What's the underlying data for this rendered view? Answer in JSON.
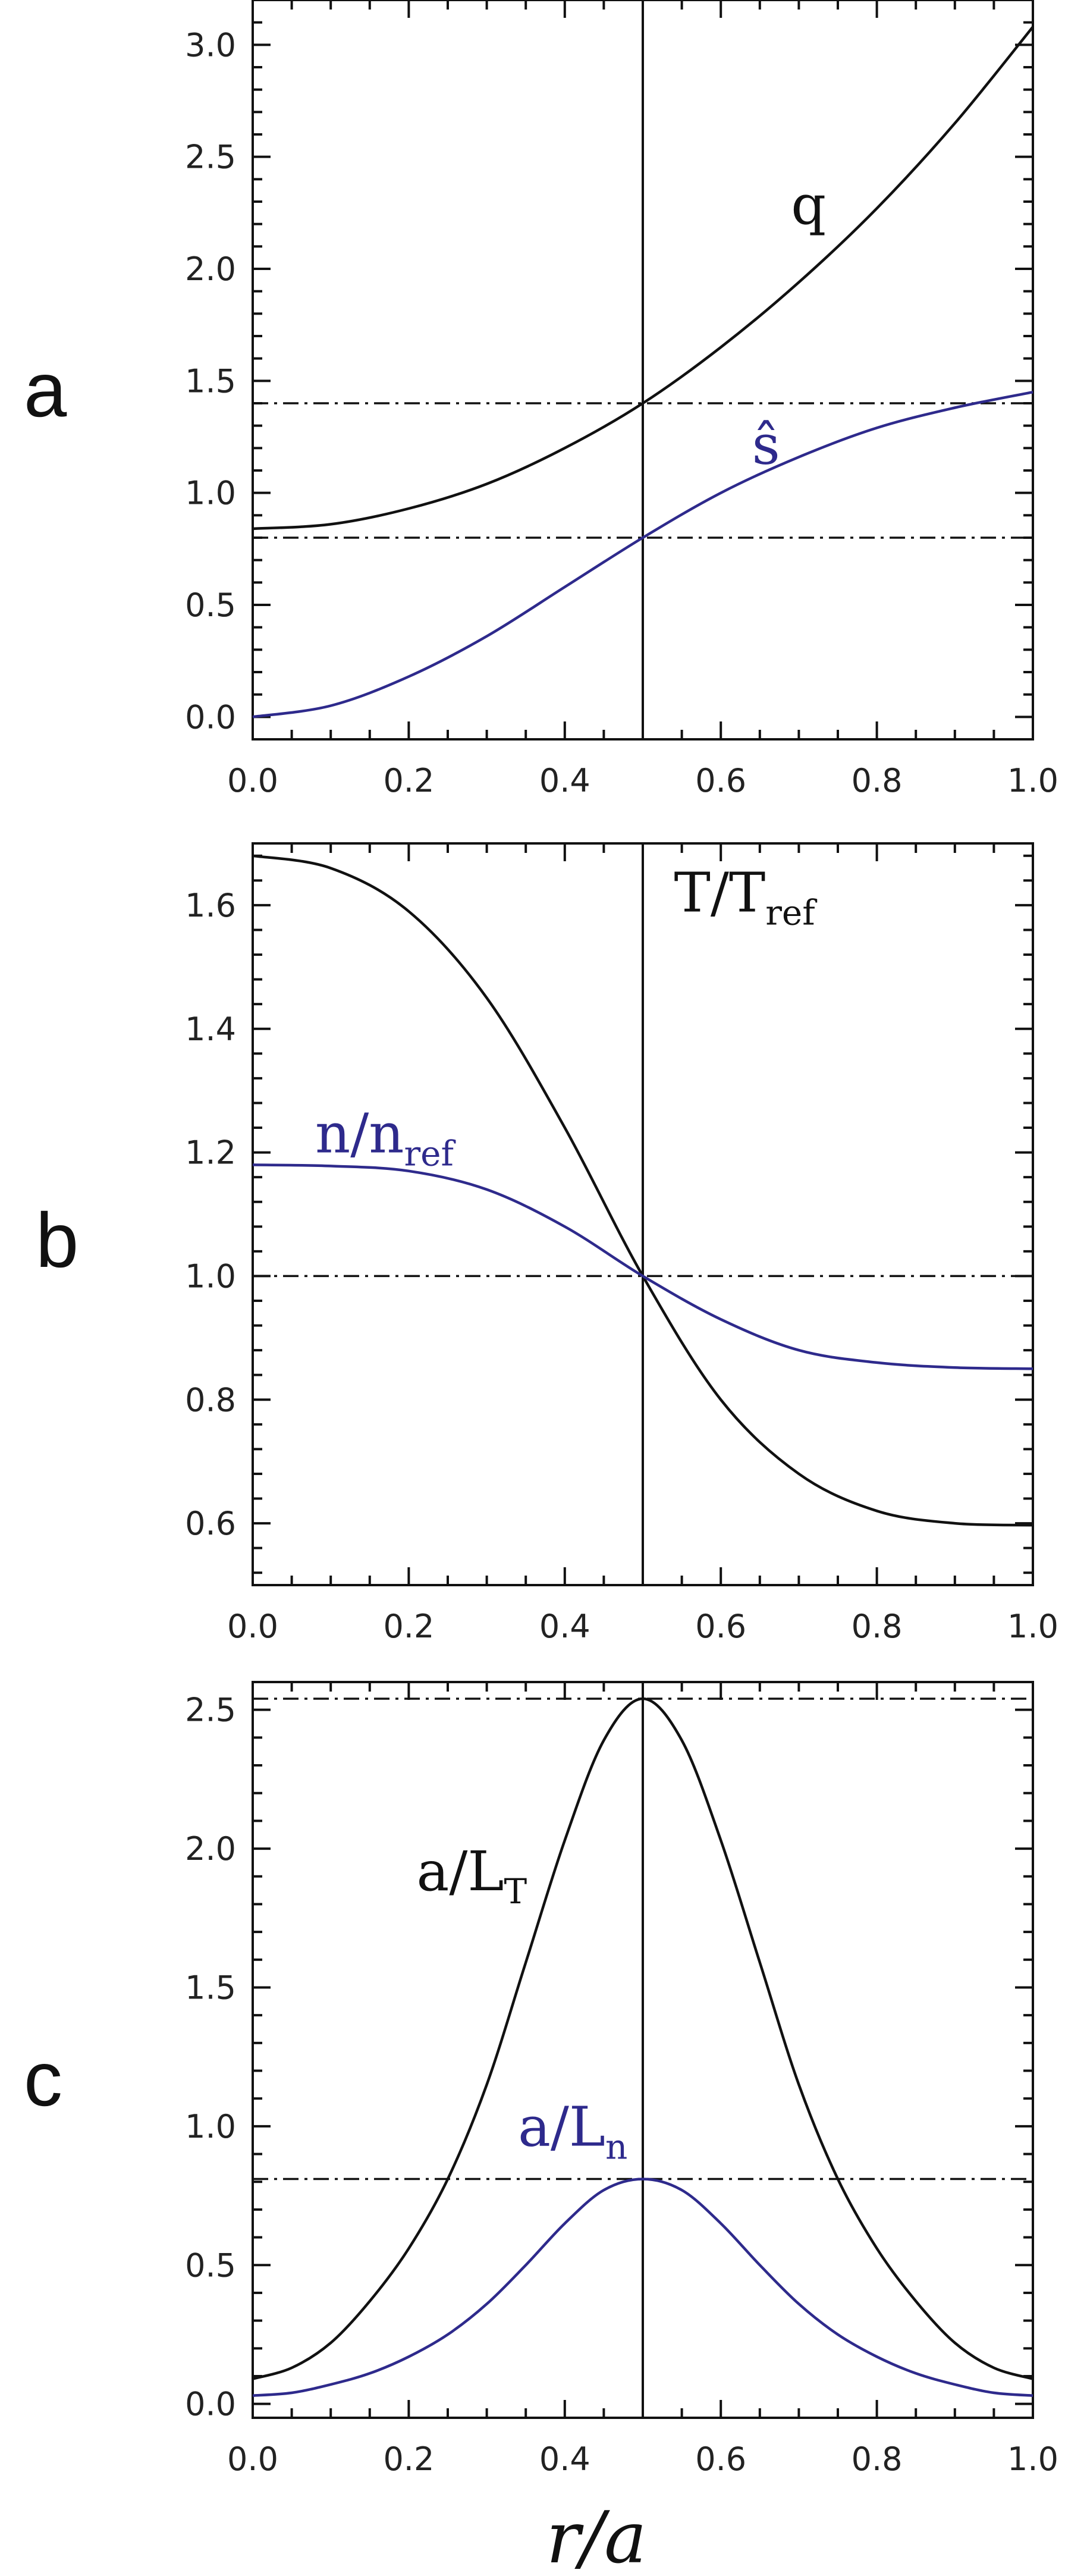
{
  "colors": {
    "black": "#111111",
    "blue": "#2e2a8c"
  },
  "x_axis": {
    "title": "r/a",
    "ticks": [
      "0.0",
      "0.2",
      "0.4",
      "0.6",
      "0.8",
      "1.0"
    ]
  },
  "chart_data": [
    {
      "type": "line",
      "panel_label": "a",
      "xlim": [
        0,
        1
      ],
      "ylim": [
        -0.1,
        3.2
      ],
      "yticks": [
        0.0,
        0.5,
        1.0,
        1.5,
        2.0,
        2.5,
        3.0
      ],
      "ytick_labels": [
        "0.0",
        "0.5",
        "1.0",
        "1.5",
        "2.0",
        "2.5",
        "3.0"
      ],
      "vline_x": 0.5,
      "hlines": [
        1.4,
        0.8
      ],
      "series": [
        {
          "name": "q",
          "color": "black",
          "x": [
            0.0,
            0.1,
            0.2,
            0.3,
            0.4,
            0.5,
            0.6,
            0.7,
            0.8,
            0.9,
            1.0
          ],
          "y": [
            0.84,
            0.86,
            0.93,
            1.04,
            1.2,
            1.4,
            1.65,
            1.94,
            2.27,
            2.65,
            3.08
          ]
        },
        {
          "name": "ŝ",
          "color": "blue",
          "x": [
            0.0,
            0.1,
            0.2,
            0.3,
            0.4,
            0.5,
            0.6,
            0.7,
            0.8,
            0.9,
            1.0
          ],
          "y": [
            0.0,
            0.05,
            0.18,
            0.36,
            0.58,
            0.8,
            1.0,
            1.16,
            1.29,
            1.38,
            1.45
          ]
        }
      ],
      "labels": [
        {
          "series": 0,
          "text": "q",
          "sub": "",
          "lx": 0.69,
          "ly": 2.2
        },
        {
          "series": 1,
          "text": "ŝ",
          "sub": "",
          "lx": 0.64,
          "ly": 1.13
        }
      ]
    },
    {
      "type": "line",
      "panel_label": "b",
      "xlim": [
        0,
        1
      ],
      "ylim": [
        0.5,
        1.7
      ],
      "yticks": [
        0.6,
        0.8,
        1.0,
        1.2,
        1.4,
        1.6
      ],
      "ytick_labels": [
        "0.6",
        "0.8",
        "1.0",
        "1.2",
        "1.4",
        "1.6"
      ],
      "vline_x": 0.5,
      "hlines": [
        1.0
      ],
      "series": [
        {
          "name": "T/Tref",
          "color": "black",
          "x": [
            0.0,
            0.1,
            0.2,
            0.3,
            0.4,
            0.5,
            0.6,
            0.7,
            0.8,
            0.9,
            1.0
          ],
          "y": [
            1.68,
            1.66,
            1.59,
            1.45,
            1.24,
            1.0,
            0.8,
            0.68,
            0.62,
            0.6,
            0.597
          ]
        },
        {
          "name": "n/nref",
          "color": "blue",
          "x": [
            0.0,
            0.1,
            0.2,
            0.3,
            0.4,
            0.5,
            0.6,
            0.7,
            0.8,
            0.9,
            1.0
          ],
          "y": [
            1.18,
            1.178,
            1.17,
            1.14,
            1.08,
            1.0,
            0.93,
            0.88,
            0.86,
            0.852,
            0.85
          ]
        }
      ],
      "labels": [
        {
          "series": 0,
          "text": "T/T",
          "sub": "ref",
          "lx": 0.54,
          "ly": 1.59
        },
        {
          "series": 1,
          "text": "n/n",
          "sub": "ref",
          "lx": 0.08,
          "ly": 1.2
        }
      ]
    },
    {
      "type": "line",
      "panel_label": "c",
      "xlim": [
        0,
        1
      ],
      "ylim": [
        -0.05,
        2.6
      ],
      "yticks": [
        0.0,
        0.5,
        1.0,
        1.5,
        2.0,
        2.5
      ],
      "ytick_labels": [
        "0.0",
        "0.5",
        "1.0",
        "1.5",
        "2.0",
        "2.5"
      ],
      "vline_x": 0.5,
      "hlines": [
        2.54,
        0.81
      ],
      "series": [
        {
          "name": "a/LT",
          "color": "black",
          "x": [
            0.0,
            0.05,
            0.1,
            0.15,
            0.2,
            0.25,
            0.3,
            0.35,
            0.4,
            0.45,
            0.5,
            0.55,
            0.6,
            0.65,
            0.7,
            0.75,
            0.8,
            0.85,
            0.9,
            0.95,
            1.0
          ],
          "y": [
            0.09,
            0.13,
            0.22,
            0.37,
            0.56,
            0.81,
            1.15,
            1.59,
            2.03,
            2.39,
            2.54,
            2.39,
            2.03,
            1.59,
            1.15,
            0.81,
            0.56,
            0.37,
            0.22,
            0.13,
            0.09
          ]
        },
        {
          "name": "a/Ln",
          "color": "blue",
          "x": [
            0.0,
            0.05,
            0.1,
            0.15,
            0.2,
            0.25,
            0.3,
            0.35,
            0.4,
            0.45,
            0.5,
            0.55,
            0.6,
            0.65,
            0.7,
            0.75,
            0.8,
            0.85,
            0.9,
            0.95,
            1.0
          ],
          "y": [
            0.03,
            0.04,
            0.07,
            0.11,
            0.17,
            0.25,
            0.36,
            0.5,
            0.65,
            0.77,
            0.81,
            0.77,
            0.65,
            0.5,
            0.36,
            0.25,
            0.17,
            0.11,
            0.07,
            0.04,
            0.03
          ]
        }
      ],
      "labels": [
        {
          "series": 0,
          "text": "a/L",
          "sub": "T",
          "lx": 0.21,
          "ly": 1.85
        },
        {
          "series": 1,
          "text": "a/L",
          "sub": "n",
          "lx": 0.34,
          "ly": 0.93
        }
      ]
    }
  ]
}
